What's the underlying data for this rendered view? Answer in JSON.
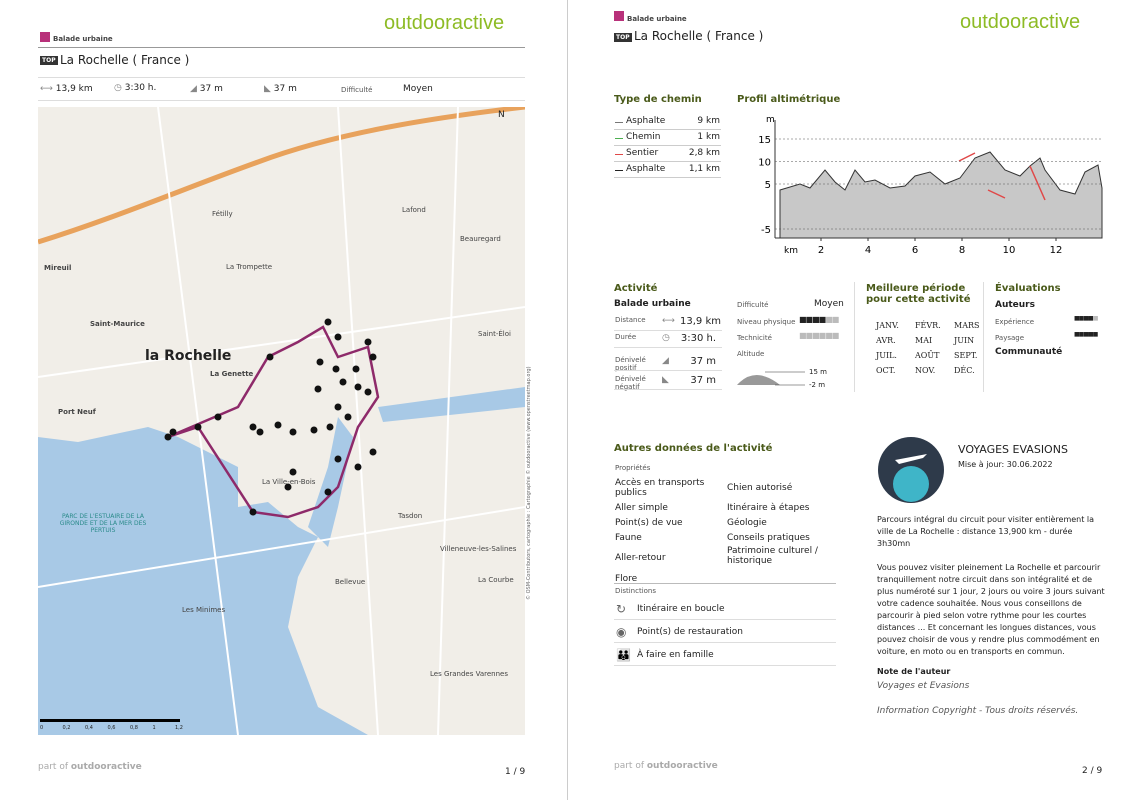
{
  "page1": {
    "category": "Balade urbaine",
    "brand": "outdooractive",
    "top_badge": "TOP",
    "title": "La Rochelle ( France )",
    "stats": {
      "distance": "13,9 km",
      "duration": "3:30 h.",
      "ascent": "37 m",
      "descent": "37 m",
      "difficulty_label": "Difficulté",
      "difficulty": "Moyen"
    },
    "map": {
      "north": "N",
      "city": "la Rochelle",
      "labels": [
        "Mireuil",
        "Saint-Maurice",
        "La Genette",
        "Port Neuf",
        "Fétilly",
        "Lafond",
        "Beauregard",
        "La Trompette",
        "Saint-Éloi",
        "Tasdon",
        "Bellevue",
        "Les Minimes",
        "La Ville-en-Bois",
        "La Courbe",
        "Villeneuve-les-Salines",
        "Les Grandes Varennes"
      ],
      "park": "PARC DE L'ESTUAIRE DE LA GIRONDE ET DE LA MER DES PERTUIS",
      "scale": [
        "0",
        "0,2",
        "0,4",
        "0,6",
        "0,8",
        "1",
        "1,2"
      ],
      "credits": "© OSM-Contributors, cartographie : Cartographie © outdooractive (www.openstreetmap.org)"
    },
    "footer": {
      "part_of": "part of",
      "brand": "outdooractive",
      "page": "1 / 9"
    }
  },
  "page2": {
    "category": "Balade urbaine",
    "brand": "outdooractive",
    "top_badge": "TOP",
    "title": "La Rochelle ( France )",
    "path_types": {
      "heading": "Type de chemin",
      "rows": [
        {
          "label": "Asphalte",
          "value": "9 km",
          "color": "#777777"
        },
        {
          "label": "Chemin",
          "value": "1 km",
          "color": "#4caf50"
        },
        {
          "label": "Sentier",
          "value": "2,8 km",
          "color": "#e04848"
        },
        {
          "label": "Asphalte",
          "value": "1,1 km",
          "color": "#222222"
        }
      ]
    },
    "profile": {
      "heading": "Profil altimétrique",
      "y_unit": "m",
      "yticks": [
        15,
        10,
        5,
        -5
      ],
      "x_unit": "km",
      "xticks": [
        2,
        4,
        6,
        8,
        10,
        12
      ]
    },
    "activity": {
      "heading": "Activité",
      "subheading": "Balade urbaine",
      "rows": [
        {
          "label": "Distance",
          "value": "13,9 km"
        },
        {
          "label": "Durée",
          "value": "3:30 h."
        },
        {
          "label": "Dénivelé positif",
          "value": "37 m"
        },
        {
          "label": "Dénivelé négatif",
          "value": "37 m"
        }
      ],
      "difficulty_label": "Difficulté",
      "difficulty": "Moyen",
      "physical": "Niveau physique",
      "technique": "Technicité",
      "altitude": "Altitude",
      "alt_max": "15 m",
      "alt_min": "-2 m"
    },
    "season": {
      "heading": "Meilleure période pour cette activité",
      "months": [
        "JANV.",
        "FÉVR.",
        "MARS",
        "AVR.",
        "MAI",
        "JUIN",
        "JUIL.",
        "AOÛT",
        "SEPT.",
        "OCT.",
        "NOV.",
        "DÉC."
      ]
    },
    "ratings": {
      "heading": "Évaluations",
      "authors": "Auteurs",
      "experience": "Expérience",
      "landscape": "Paysage",
      "community": "Communauté"
    },
    "other": {
      "heading": "Autres données de l'activité",
      "properties_label": "Propriétés",
      "properties_left": [
        "Accès en transports publics",
        "Aller simple",
        "Point(s) de vue",
        "Faune",
        "Aller-retour",
        "Flore"
      ],
      "properties_right": [
        "Chien autorisé",
        "Itinéraire à étapes",
        "Géologie",
        "Conseils pratiques",
        "Patrimoine culturel / historique"
      ],
      "distinctions_label": "Distinctions",
      "distinctions": [
        "Itinéraire en boucle",
        "Point(s) de restauration",
        "À faire en famille"
      ]
    },
    "author": {
      "name": "VOYAGES EVASIONS",
      "updated": "Mise à jour: 30.06.2022",
      "paragraphs": [
        "Parcours intégral du circuit pour visiter entièrement la ville de La Rochelle : distance 13,900 km - durée 3h30mn",
        "Vous pouvez visiter pleinement La Rochelle et parcourir tranquillement notre circuit dans son intégralité et de plus numéroté sur 1 jour, 2 jours ou voire 3 jours suivant votre cadence souhaitée. Nous vous conseillons de parcourir à pied selon votre rythme pour les courtes distances ... Et concernant les longues distances, vous pouvez choisir de vous y rendre plus commodément en voiture, en moto ou en transports en commun."
      ],
      "note_label": "Note de l'auteur",
      "note": "Voyages et Evasions",
      "copyright": "Information Copyright - Tous droits réservés."
    },
    "footer": {
      "part_of": "part of",
      "brand": "outdooractive",
      "page": "2 / 9"
    }
  }
}
